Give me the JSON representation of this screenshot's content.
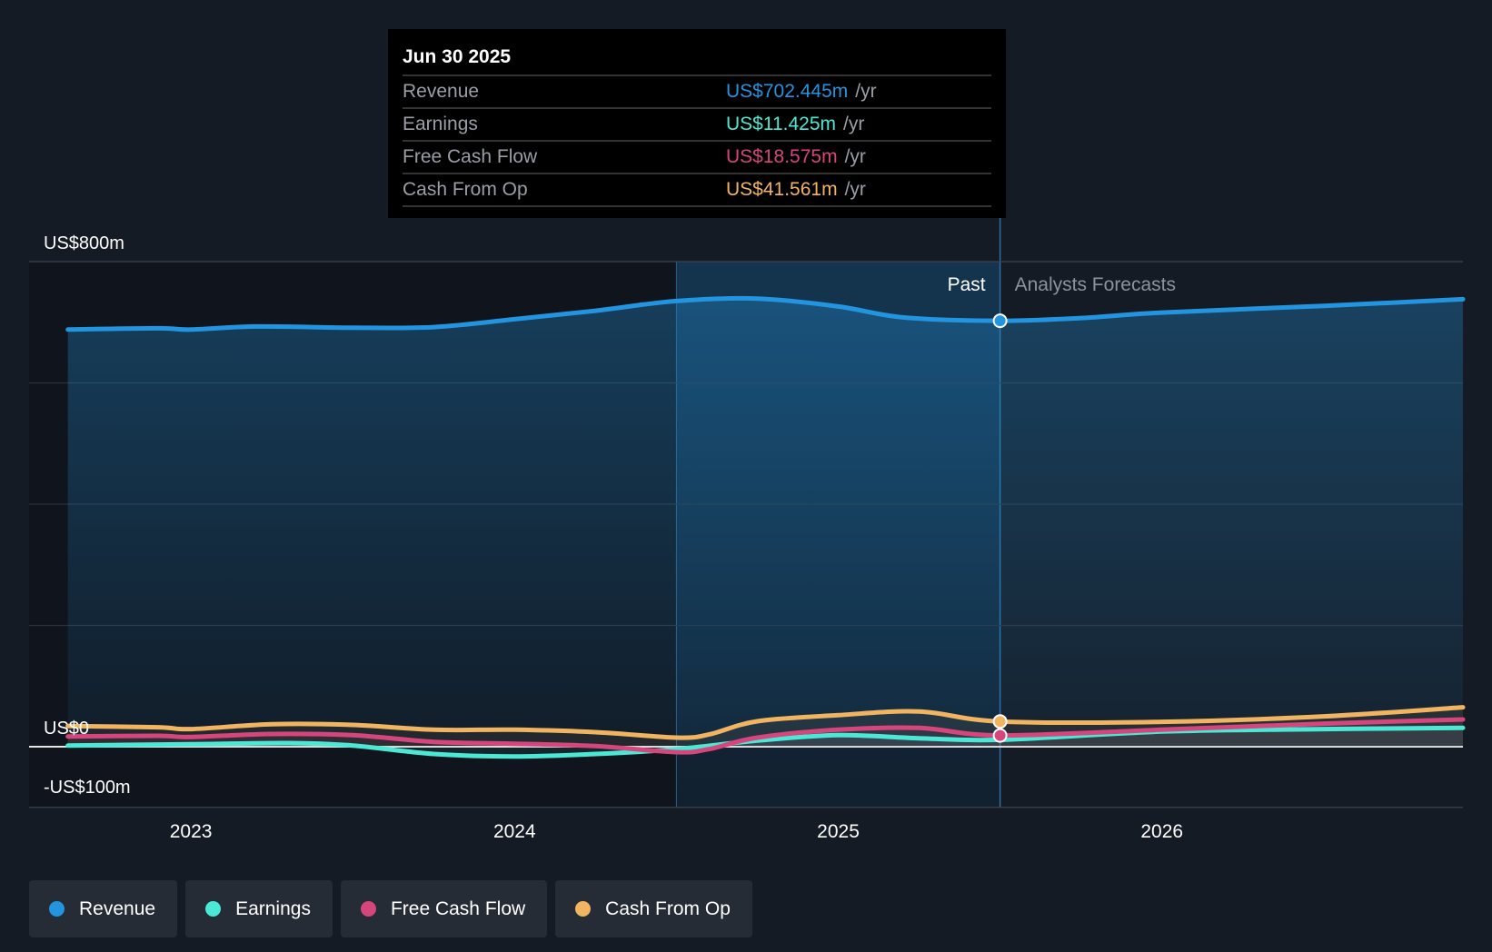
{
  "chart_data": {
    "type": "area",
    "x_unit": "year",
    "xlim": [
      2022.5,
      2026.93
    ],
    "ylim": [
      -100,
      800
    ],
    "y_tick_labels": [
      {
        "value": 800,
        "label": "US$800m"
      },
      {
        "value": 0,
        "label": "US$0"
      },
      {
        "value": -100,
        "label": "-US$100m"
      }
    ],
    "y_gridlines": [
      800,
      600,
      400,
      200,
      0,
      -100
    ],
    "x_ticks": [
      {
        "value": 2023,
        "label": "2023"
      },
      {
        "value": 2024,
        "label": "2024"
      },
      {
        "value": 2025,
        "label": "2025"
      },
      {
        "value": 2026,
        "label": "2026"
      }
    ],
    "past_label": "Past",
    "forecast_label": "Analysts Forecasts",
    "past_end_x": 2025.5,
    "highlight_start_x": 2024.5,
    "series": [
      {
        "name": "Revenue",
        "color": "#2394df",
        "filled": true,
        "points": [
          [
            2022.62,
            688
          ],
          [
            2022.9,
            690
          ],
          [
            2023.0,
            688
          ],
          [
            2023.2,
            693
          ],
          [
            2023.5,
            691
          ],
          [
            2023.75,
            692
          ],
          [
            2024.0,
            705
          ],
          [
            2024.25,
            719
          ],
          [
            2024.5,
            735
          ],
          [
            2024.75,
            739
          ],
          [
            2025.0,
            726
          ],
          [
            2025.2,
            708
          ],
          [
            2025.5,
            702.445
          ],
          [
            2025.75,
            707
          ],
          [
            2026.0,
            716
          ],
          [
            2026.5,
            727
          ],
          [
            2026.93,
            738
          ]
        ]
      },
      {
        "name": "Earnings",
        "color": "#4ce8d6",
        "filled": false,
        "points": [
          [
            2022.62,
            2
          ],
          [
            2023.0,
            4
          ],
          [
            2023.3,
            6
          ],
          [
            2023.5,
            2
          ],
          [
            2023.75,
            -12
          ],
          [
            2024.0,
            -16
          ],
          [
            2024.25,
            -12
          ],
          [
            2024.5,
            -4
          ],
          [
            2024.75,
            10
          ],
          [
            2025.0,
            19
          ],
          [
            2025.25,
            14
          ],
          [
            2025.5,
            11.425
          ],
          [
            2026.0,
            25
          ],
          [
            2026.5,
            29
          ],
          [
            2026.93,
            31
          ]
        ]
      },
      {
        "name": "Free Cash Flow",
        "color": "#d5477c",
        "filled": false,
        "points": [
          [
            2022.62,
            17
          ],
          [
            2022.9,
            18
          ],
          [
            2023.0,
            16
          ],
          [
            2023.25,
            21
          ],
          [
            2023.5,
            19
          ],
          [
            2023.75,
            8
          ],
          [
            2024.0,
            5
          ],
          [
            2024.25,
            1
          ],
          [
            2024.5,
            -9
          ],
          [
            2024.6,
            -4
          ],
          [
            2024.75,
            15
          ],
          [
            2025.0,
            28
          ],
          [
            2025.25,
            31
          ],
          [
            2025.5,
            18.575
          ],
          [
            2026.0,
            28
          ],
          [
            2026.5,
            38
          ],
          [
            2026.93,
            45
          ]
        ]
      },
      {
        "name": "Cash From Op",
        "color": "#f1b461",
        "filled": false,
        "points": [
          [
            2022.62,
            34
          ],
          [
            2022.9,
            32
          ],
          [
            2023.0,
            29
          ],
          [
            2023.25,
            37
          ],
          [
            2023.5,
            36
          ],
          [
            2023.75,
            28
          ],
          [
            2024.0,
            28
          ],
          [
            2024.25,
            24
          ],
          [
            2024.5,
            15
          ],
          [
            2024.6,
            20
          ],
          [
            2024.75,
            42
          ],
          [
            2025.0,
            52
          ],
          [
            2025.25,
            58
          ],
          [
            2025.5,
            41.561
          ],
          [
            2026.0,
            41
          ],
          [
            2026.5,
            50
          ],
          [
            2026.93,
            65
          ]
        ]
      }
    ]
  },
  "tooltip": {
    "date": "Jun 30 2025",
    "rows": [
      {
        "label": "Revenue",
        "value": "US$702.445m",
        "unit": "/yr",
        "color": "#2394df"
      },
      {
        "label": "Earnings",
        "value": "US$11.425m",
        "unit": "/yr",
        "color": "#4ce8d6"
      },
      {
        "label": "Free Cash Flow",
        "value": "US$18.575m",
        "unit": "/yr",
        "color": "#d5477c"
      },
      {
        "label": "Cash From Op",
        "value": "US$41.561m",
        "unit": "/yr",
        "color": "#f1b461"
      }
    ]
  },
  "legend": [
    {
      "label": "Revenue",
      "color": "#2394df"
    },
    {
      "label": "Earnings",
      "color": "#4ce8d6"
    },
    {
      "label": "Free Cash Flow",
      "color": "#d5477c"
    },
    {
      "label": "Cash From Op",
      "color": "#f1b461"
    }
  ]
}
